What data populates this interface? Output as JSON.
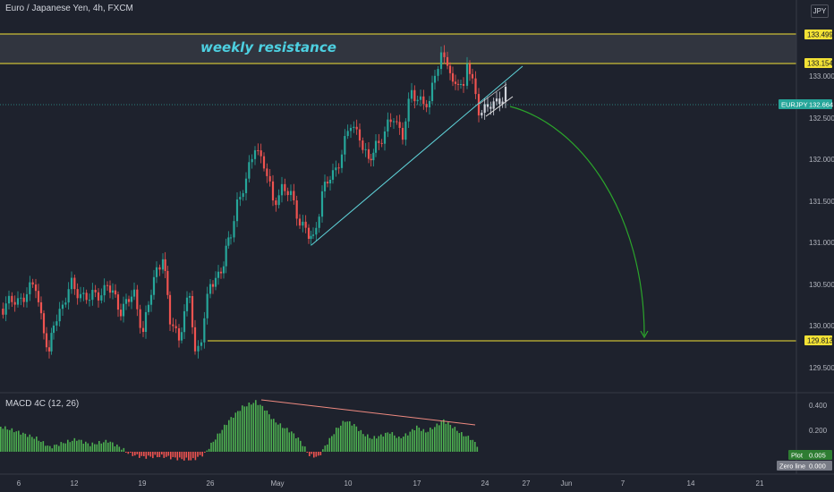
{
  "header": {
    "symbol_title": "Euro / Japanese Yen, 4h, FXCM",
    "currency_label": "JPY"
  },
  "annotation": {
    "text": "weekly resistance"
  },
  "price_axis": {
    "ticks": [
      "133.000",
      "132.500",
      "132.000",
      "131.500",
      "131.000",
      "130.500",
      "130.000",
      "129.500"
    ]
  },
  "price_tags": {
    "upper_resistance": "133.499",
    "lower_resistance": "133.154",
    "current": "132.664",
    "current_symbol": "EURJPY",
    "support": "129.813"
  },
  "time_axis": {
    "ticks": [
      "6",
      "12",
      "19",
      "26",
      "May",
      "10",
      "17",
      "24",
      "27",
      "Jun",
      "7",
      "14",
      "21"
    ]
  },
  "macd": {
    "title": "MACD 4C (12, 26)",
    "ticks": [
      "0.400",
      "0.200"
    ],
    "plot_label": "Plot",
    "plot_value": "0.005",
    "zero_label": "Zero line",
    "zero_value": "0.000"
  },
  "colors": {
    "background": "#1e222d",
    "up_candle": "#26a69a",
    "down_candle": "#ef5350",
    "resistance_line": "#f2e135",
    "trendline": "#5fd3d9",
    "projection_arrow": "#2ba52b",
    "macd_up": "#4caf50",
    "macd_down": "#ef5350"
  }
}
